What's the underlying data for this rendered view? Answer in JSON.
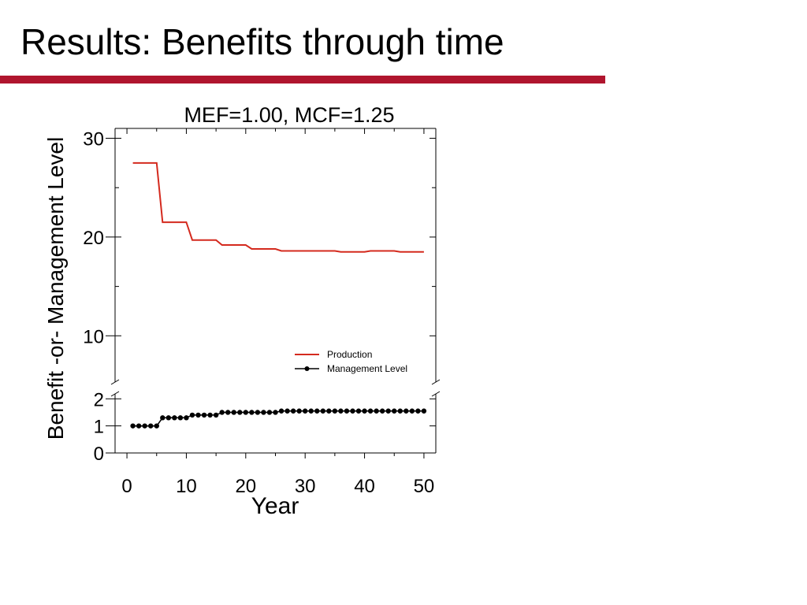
{
  "slide": {
    "title": "Results: Benefits through time",
    "accent_color": "#b0152e"
  },
  "chart_data": {
    "type": "line",
    "title": "MEF=1.00, MCF=1.25",
    "xlabel": "Year",
    "ylabel": "Benefit -or- Management Level",
    "xlim": [
      -2,
      52
    ],
    "x_ticks": [
      0,
      10,
      20,
      30,
      40,
      50
    ],
    "broken_y_axis": true,
    "upper_panel": {
      "ylim": [
        5,
        31
      ],
      "y_ticks": [
        10,
        20,
        30
      ]
    },
    "lower_panel": {
      "ylim": [
        0,
        2.3
      ],
      "y_ticks": [
        0,
        1,
        2
      ]
    },
    "grid": false,
    "legend_position": "bottom-right of upper panel",
    "series": [
      {
        "name": "Production",
        "color": "#d42a1e",
        "marker": "none",
        "panel": "upper",
        "points": [
          [
            1,
            27.5
          ],
          [
            5,
            27.5
          ],
          [
            6,
            21.5
          ],
          [
            10,
            21.5
          ],
          [
            11,
            19.7
          ],
          [
            15,
            19.7
          ],
          [
            16,
            19.2
          ],
          [
            20,
            19.2
          ],
          [
            21,
            18.8
          ],
          [
            25,
            18.8
          ],
          [
            26,
            18.6
          ],
          [
            35,
            18.6
          ],
          [
            36,
            18.5
          ],
          [
            40,
            18.5
          ],
          [
            41,
            18.6
          ],
          [
            45,
            18.6
          ],
          [
            46,
            18.5
          ],
          [
            50,
            18.5
          ]
        ]
      },
      {
        "name": "Management Level",
        "color": "#000000",
        "marker": "circle",
        "panel": "lower",
        "x": [
          1,
          2,
          3,
          4,
          5,
          6,
          7,
          8,
          9,
          10,
          11,
          12,
          13,
          14,
          15,
          16,
          17,
          18,
          19,
          20,
          21,
          22,
          23,
          24,
          25,
          26,
          27,
          28,
          29,
          30,
          31,
          32,
          33,
          34,
          35,
          36,
          37,
          38,
          39,
          40,
          41,
          42,
          43,
          44,
          45,
          46,
          47,
          48,
          49,
          50
        ],
        "y": [
          1.0,
          1.0,
          1.0,
          1.0,
          1.0,
          1.3,
          1.3,
          1.3,
          1.3,
          1.3,
          1.4,
          1.4,
          1.4,
          1.4,
          1.4,
          1.5,
          1.5,
          1.5,
          1.5,
          1.5,
          1.5,
          1.5,
          1.5,
          1.5,
          1.5,
          1.55,
          1.55,
          1.55,
          1.55,
          1.55,
          1.55,
          1.55,
          1.55,
          1.55,
          1.55,
          1.55,
          1.55,
          1.55,
          1.55,
          1.55,
          1.55,
          1.55,
          1.55,
          1.55,
          1.55,
          1.55,
          1.55,
          1.55,
          1.55,
          1.55
        ]
      }
    ]
  }
}
